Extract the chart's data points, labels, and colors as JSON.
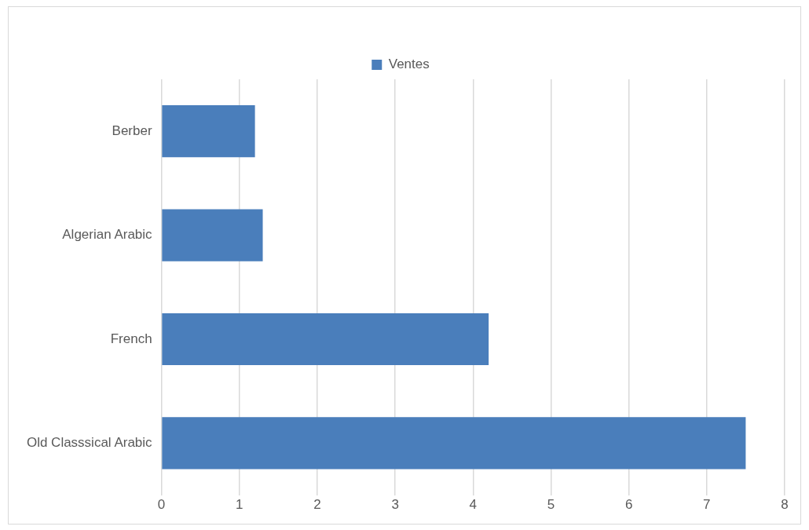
{
  "chart_data": {
    "type": "bar",
    "orientation": "horizontal",
    "categories": [
      "Berber",
      "Algerian Arabic",
      "French",
      "Old Classsical Arabic"
    ],
    "series": [
      {
        "name": "Ventes",
        "color": "#4a7ebb",
        "values": [
          1.2,
          1.3,
          4.2,
          7.5
        ]
      }
    ],
    "xlim": [
      0,
      8
    ],
    "xticks": [
      0,
      1,
      2,
      3,
      4,
      5,
      6,
      7,
      8
    ],
    "grid": "x",
    "legend": "top"
  }
}
